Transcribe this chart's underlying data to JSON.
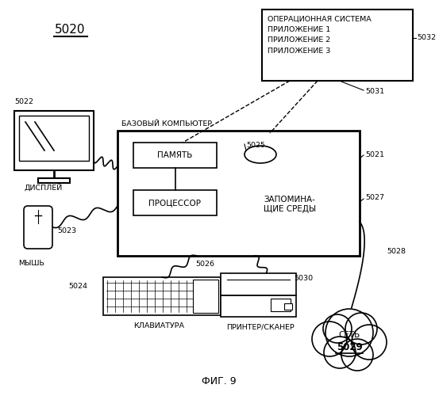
{
  "title": "ФИГ. 9",
  "bg_color": "#ffffff",
  "label_5020": "5020",
  "label_5021": "5021",
  "label_5022": "5022",
  "label_5023": "5023",
  "label_5024": "5024",
  "label_5025": "5025",
  "label_5026": "5026",
  "label_5027": "5027",
  "label_5028": "5028",
  "label_5029": "5029",
  "label_5030": "5030",
  "label_5031": "5031",
  "label_5032": "5032",
  "text_base_computer": "БАЗОВЫЙ КОМПЬЮТЕР",
  "text_memory": "ПАМЯТЬ",
  "text_processor": "ПРОЦЕССОР",
  "text_storage": "ЗАПОМИНА-\nЩИЕ СРЕДЫ",
  "text_display": "ДИСПЛЕЙ",
  "text_mouse": "МЫШЬ",
  "text_keyboard": "КЛАВИАТУРА",
  "text_printer": "ПРИНТЕР/СКАНЕР",
  "text_network": "СЕТЬ",
  "text_os": "ОПЕРАЦИОННАЯ СИСТЕМА\nПРИЛОЖЕНИЕ 1\nПРИЛОЖЕНИЕ 2\nПРИЛОЖЕНИЕ 3"
}
